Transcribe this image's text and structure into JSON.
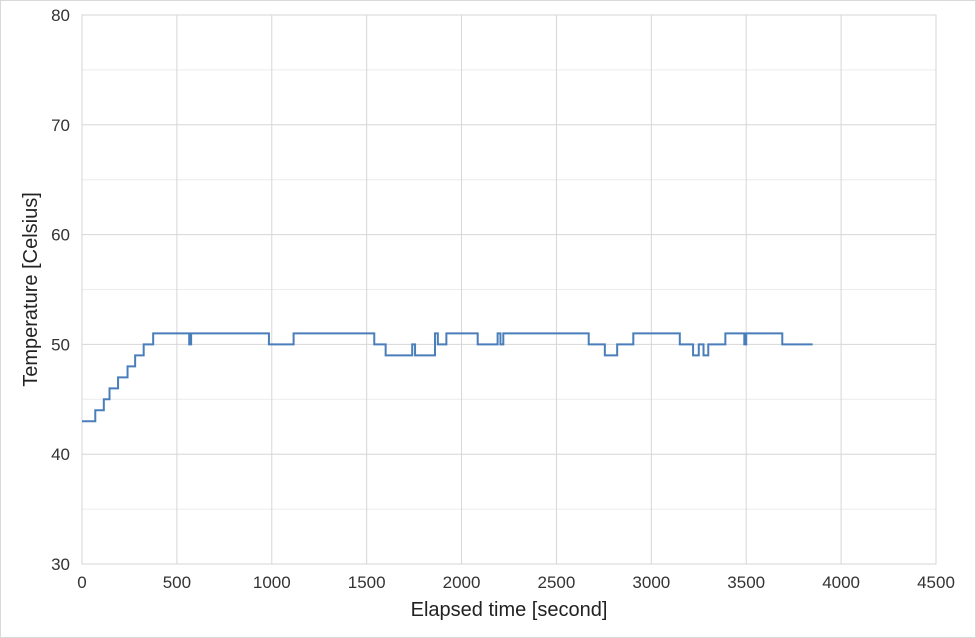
{
  "chart_data": {
    "type": "line",
    "title": "",
    "xlabel": "Elapsed time [second]",
    "ylabel": "Temperature [Celsius]",
    "xlim": [
      0,
      4500
    ],
    "ylim": [
      30,
      80
    ],
    "x_ticks": [
      0,
      500,
      1000,
      1500,
      2000,
      2500,
      3000,
      3500,
      4000,
      4500
    ],
    "y_ticks": [
      30,
      40,
      50,
      60,
      70,
      80
    ],
    "grid": true,
    "line_color": "#4a7ebb",
    "legend": "none",
    "step": true,
    "x": [
      0,
      70,
      115,
      145,
      190,
      240,
      280,
      325,
      375,
      565,
      575,
      985,
      1115,
      1540,
      1600,
      1740,
      1755,
      1860,
      1875,
      1920,
      2085,
      2190,
      2205,
      2220,
      2670,
      2755,
      2820,
      2905,
      3150,
      3220,
      3250,
      3275,
      3300,
      3390,
      3490,
      3500,
      3690,
      3850
    ],
    "y": [
      43,
      44,
      45,
      46,
      47,
      48,
      49,
      50,
      51,
      50,
      51,
      50,
      51,
      50,
      49,
      50,
      49,
      51,
      50,
      51,
      50,
      51,
      50,
      51,
      50,
      49,
      50,
      51,
      50,
      49,
      50,
      49,
      50,
      51,
      50,
      51,
      50,
      50
    ]
  }
}
